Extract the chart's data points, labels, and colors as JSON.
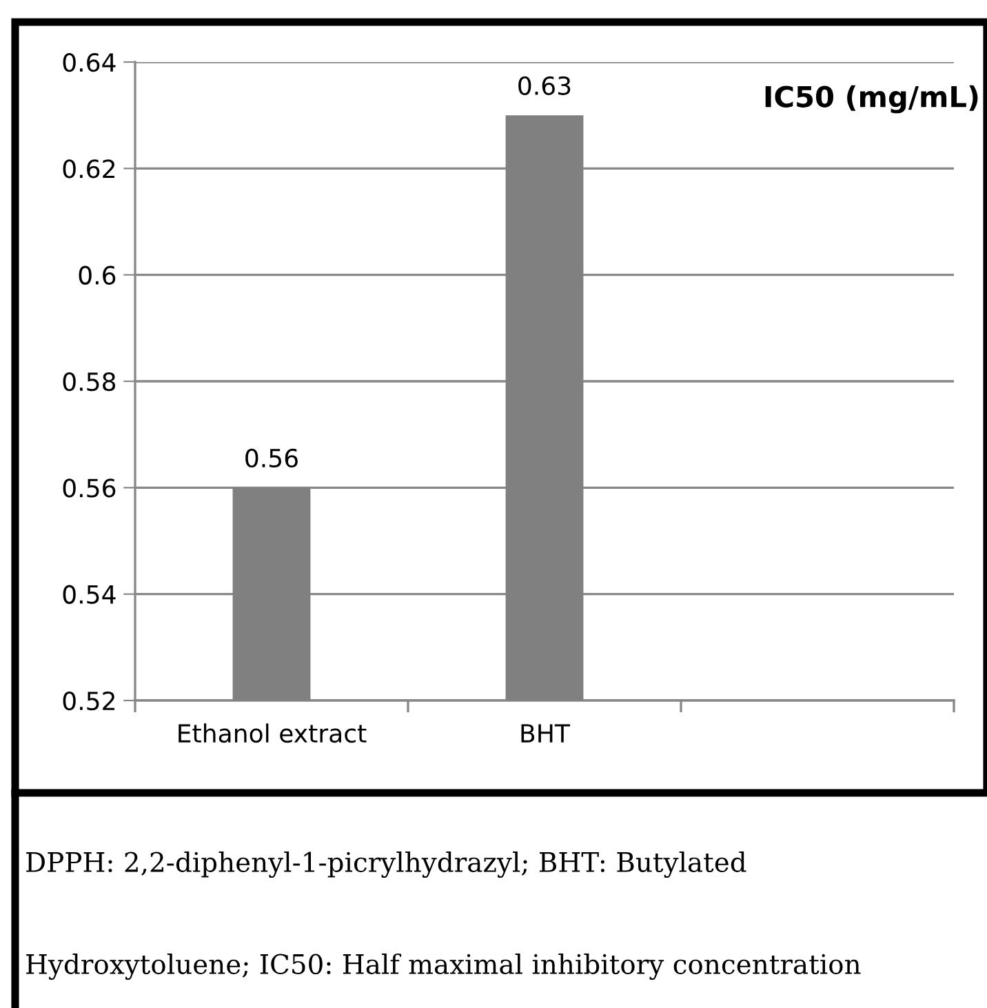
{
  "chart_data": {
    "type": "bar",
    "title": "IC50 (mg/mL)",
    "categories": [
      "Ethanol extract",
      "BHT",
      null
    ],
    "values": [
      0.56,
      0.63,
      null
    ],
    "color": "#808080",
    "ylim": [
      0.52,
      0.64
    ],
    "yticks": [
      0.52,
      0.54,
      0.56,
      0.58,
      0.6,
      0.62,
      0.64
    ],
    "grid": "y",
    "data_labels": true,
    "annotations": [
      "DPPH: 2,2-diphenyl-1-picrylhydrazyl; BHT: Butylated",
      "Hydroxytoluene; IC50: Half maximal inhibitory concentration"
    ]
  }
}
